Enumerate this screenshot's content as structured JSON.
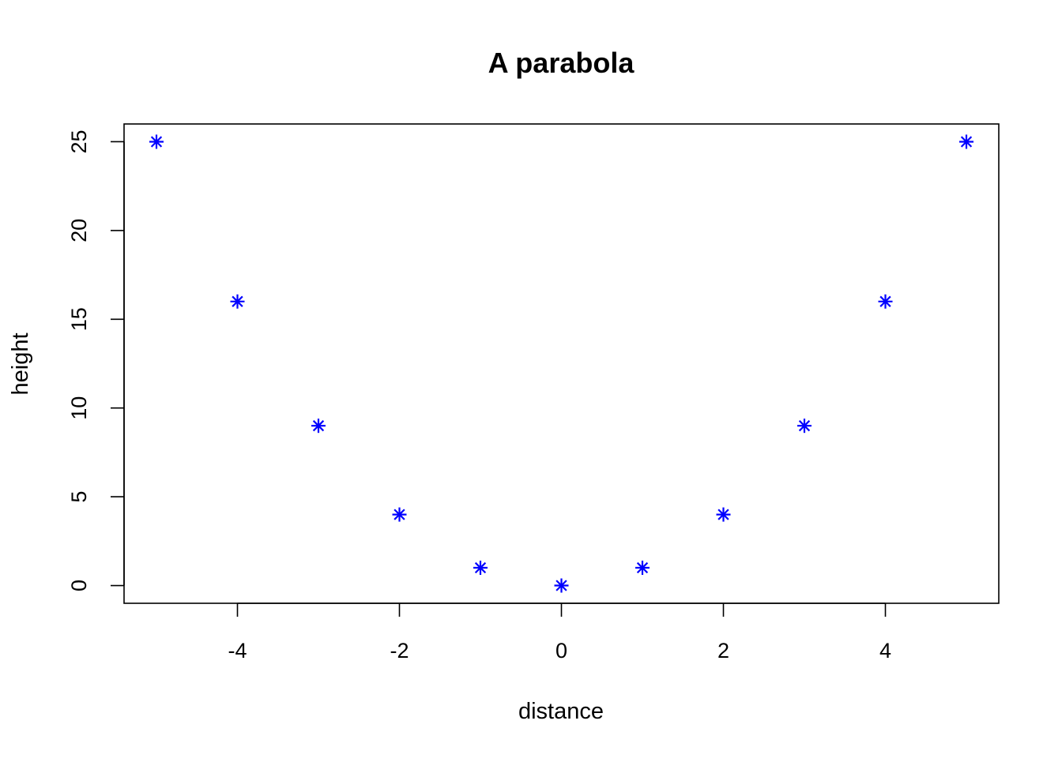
{
  "chart_data": {
    "type": "scatter",
    "title": "A parabola",
    "xlabel": "distance",
    "ylabel": "height",
    "x": [
      -5,
      -4,
      -3,
      -2,
      -1,
      0,
      1,
      2,
      3,
      4,
      5
    ],
    "y": [
      25,
      16,
      9,
      4,
      1,
      0,
      1,
      4,
      9,
      16,
      25
    ],
    "xlim": [
      -5.4,
      5.4
    ],
    "ylim": [
      -1,
      26
    ],
    "x_ticks": [
      -4,
      -2,
      0,
      2,
      4
    ],
    "x_tick_labels": [
      "-4",
      "-2",
      "0",
      "2",
      "4"
    ],
    "y_ticks": [
      0,
      5,
      10,
      15,
      20,
      25
    ],
    "y_tick_labels": [
      "0",
      "5",
      "10",
      "15",
      "20",
      "25"
    ],
    "marker": "asterisk",
    "color": "#0000ff",
    "grid": false,
    "legend": "none"
  }
}
